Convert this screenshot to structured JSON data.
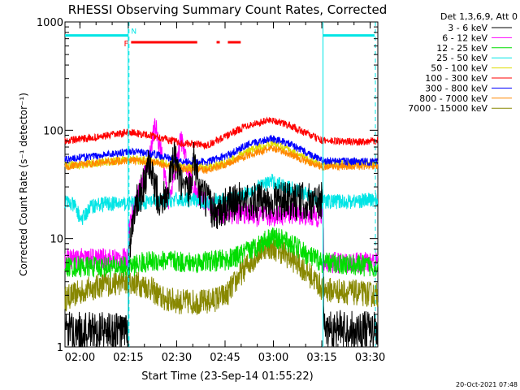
{
  "chart_data": {
    "type": "line",
    "title": "RHESSI Observing Summary Count Rates, Corrected",
    "xlabel": "Start Time (23-Sep-14 01:55:22)",
    "ylabel": "Corrected Count Rate (s⁻¹ detector⁻¹)",
    "footer": "20-Oct-2021 07:48",
    "y_scale": "log",
    "xlim": [
      0,
      97
    ],
    "ylim": [
      1,
      1000
    ],
    "x_ticks": [
      {
        "t": 4.63,
        "label": "02:00"
      },
      {
        "t": 19.63,
        "label": "02:15"
      },
      {
        "t": 34.63,
        "label": "02:30"
      },
      {
        "t": 49.63,
        "label": "02:45"
      },
      {
        "t": 64.63,
        "label": "03:00"
      },
      {
        "t": 79.63,
        "label": "03:15"
      },
      {
        "t": 94.63,
        "label": "03:30"
      }
    ],
    "y_ticks": [
      {
        "v": 1,
        "label": "1"
      },
      {
        "v": 10,
        "label": "10"
      },
      {
        "v": 100,
        "label": "100"
      },
      {
        "v": 1000,
        "label": "1000"
      }
    ],
    "legend_title": "Det 1,3,6,9, Att 0",
    "legend_position": "top-right",
    "series": [
      {
        "name": "3 - 6 keV",
        "color": "#000000",
        "noise": 0.18,
        "points": [
          [
            0,
            1.4
          ],
          [
            19.6,
            1.4
          ],
          [
            19.8,
            8
          ],
          [
            22,
            20
          ],
          [
            24,
            28
          ],
          [
            26,
            45
          ],
          [
            28,
            28
          ],
          [
            30,
            22
          ],
          [
            32,
            30
          ],
          [
            34,
            55
          ],
          [
            36,
            30
          ],
          [
            38,
            25
          ],
          [
            40,
            55
          ],
          [
            42,
            26
          ],
          [
            44,
            22
          ],
          [
            46,
            18
          ],
          [
            48,
            18
          ],
          [
            50,
            20
          ],
          [
            54,
            22
          ],
          [
            60,
            22
          ],
          [
            66,
            22
          ],
          [
            72,
            22
          ],
          [
            78,
            22
          ],
          [
            80,
            22
          ],
          [
            80.2,
            1.5
          ],
          [
            97,
            1.4
          ]
        ]
      },
      {
        "name": "6 - 12 keV",
        "color": "#ff00ff",
        "noise": 0.1,
        "points": [
          [
            0,
            6.5
          ],
          [
            19.6,
            6.5
          ],
          [
            19.8,
            13
          ],
          [
            23,
            28
          ],
          [
            26,
            55
          ],
          [
            28,
            110
          ],
          [
            30,
            60
          ],
          [
            32,
            22
          ],
          [
            34,
            40
          ],
          [
            36,
            85
          ],
          [
            38,
            45
          ],
          [
            40,
            28
          ],
          [
            42,
            24
          ],
          [
            44,
            21
          ],
          [
            46,
            19
          ],
          [
            48,
            17
          ],
          [
            52,
            17
          ],
          [
            56,
            17
          ],
          [
            60,
            16
          ],
          [
            64,
            16
          ],
          [
            68,
            17
          ],
          [
            72,
            17
          ],
          [
            76,
            16
          ],
          [
            80,
            16
          ],
          [
            80.2,
            6
          ],
          [
            97,
            6
          ]
        ]
      },
      {
        "name": "12 - 25 keV",
        "color": "#00dd00",
        "noise": 0.1,
        "points": [
          [
            0,
            5.5
          ],
          [
            20,
            5.5
          ],
          [
            24,
            6
          ],
          [
            30,
            6.3
          ],
          [
            38,
            6
          ],
          [
            46,
            6.2
          ],
          [
            52,
            6.5
          ],
          [
            58,
            8
          ],
          [
            64,
            10.5
          ],
          [
            70,
            9
          ],
          [
            76,
            6.8
          ],
          [
            80,
            6
          ],
          [
            97,
            5.5
          ]
        ]
      },
      {
        "name": "25 - 50 keV",
        "color": "#00e5e5",
        "noise": 0.07,
        "points": [
          [
            0,
            22
          ],
          [
            3,
            20
          ],
          [
            5,
            15
          ],
          [
            6,
            16
          ],
          [
            8,
            20
          ],
          [
            12,
            21
          ],
          [
            20,
            21
          ],
          [
            28,
            22
          ],
          [
            36,
            23
          ],
          [
            44,
            22
          ],
          [
            52,
            23
          ],
          [
            58,
            28
          ],
          [
            64,
            34
          ],
          [
            70,
            29
          ],
          [
            76,
            25
          ],
          [
            80,
            22
          ],
          [
            88,
            22
          ],
          [
            97,
            23
          ]
        ]
      },
      {
        "name": "50 - 100 keV",
        "color": "#dddd00",
        "noise": 0.04,
        "points": [
          [
            0,
            47
          ],
          [
            10,
            50
          ],
          [
            20,
            54
          ],
          [
            28,
            52
          ],
          [
            36,
            46
          ],
          [
            44,
            45
          ],
          [
            50,
            50
          ],
          [
            56,
            63
          ],
          [
            64,
            76
          ],
          [
            70,
            65
          ],
          [
            76,
            52
          ],
          [
            80,
            48
          ],
          [
            97,
            50
          ]
        ]
      },
      {
        "name": "100 - 300 keV",
        "color": "#ff0000",
        "noise": 0.035,
        "points": [
          [
            0,
            80
          ],
          [
            10,
            86
          ],
          [
            20,
            96
          ],
          [
            28,
            88
          ],
          [
            36,
            76
          ],
          [
            44,
            73
          ],
          [
            50,
            88
          ],
          [
            56,
            110
          ],
          [
            64,
            125
          ],
          [
            70,
            110
          ],
          [
            76,
            90
          ],
          [
            80,
            80
          ],
          [
            90,
            78
          ],
          [
            97,
            80
          ]
        ]
      },
      {
        "name": "300 - 800 keV",
        "color": "#0000ff",
        "noise": 0.035,
        "points": [
          [
            0,
            54
          ],
          [
            10,
            58
          ],
          [
            20,
            64
          ],
          [
            28,
            60
          ],
          [
            36,
            52
          ],
          [
            44,
            51
          ],
          [
            50,
            58
          ],
          [
            56,
            72
          ],
          [
            64,
            85
          ],
          [
            70,
            74
          ],
          [
            76,
            60
          ],
          [
            80,
            52
          ],
          [
            97,
            51
          ]
        ]
      },
      {
        "name": "800 - 7000 keV",
        "color": "#ff8800",
        "noise": 0.035,
        "points": [
          [
            0,
            46
          ],
          [
            10,
            50
          ],
          [
            20,
            53
          ],
          [
            28,
            50
          ],
          [
            36,
            44
          ],
          [
            44,
            43
          ],
          [
            50,
            49
          ],
          [
            56,
            58
          ],
          [
            64,
            68
          ],
          [
            70,
            60
          ],
          [
            76,
            50
          ],
          [
            80,
            46
          ],
          [
            97,
            47
          ]
        ]
      },
      {
        "name": "7000 - 15000 keV",
        "color": "#888800",
        "noise": 0.12,
        "points": [
          [
            0,
            2.8
          ],
          [
            6,
            3.3
          ],
          [
            12,
            3.8
          ],
          [
            20,
            4
          ],
          [
            26,
            3.6
          ],
          [
            30,
            2.8
          ],
          [
            36,
            2.6
          ],
          [
            44,
            2.6
          ],
          [
            50,
            3
          ],
          [
            56,
            5.5
          ],
          [
            62,
            8.5
          ],
          [
            66,
            8
          ],
          [
            72,
            6
          ],
          [
            78,
            4
          ],
          [
            80,
            3.4
          ],
          [
            97,
            3
          ]
        ]
      }
    ],
    "annotations": {
      "night_bars": {
        "color": "#00e5e5",
        "value": 750,
        "segments": [
          [
            0,
            19.6
          ],
          [
            80,
            96
          ]
        ],
        "labels": [
          {
            "t": 20.5,
            "text": "N"
          }
        ]
      },
      "flare_bars": {
        "color": "#ff0000",
        "value": 650,
        "segments": [
          [
            20.5,
            41
          ],
          [
            47,
            48
          ],
          [
            50.5,
            54.5
          ]
        ],
        "labels": [
          {
            "t": 19.0,
            "text": "F"
          }
        ]
      },
      "vlines_solid": {
        "color": "#00e5e5",
        "t": [
          19.6,
          80
        ]
      },
      "vlines_dashed": {
        "color": "#00e5e5",
        "t": [
          19.6,
          96
        ]
      }
    }
  }
}
